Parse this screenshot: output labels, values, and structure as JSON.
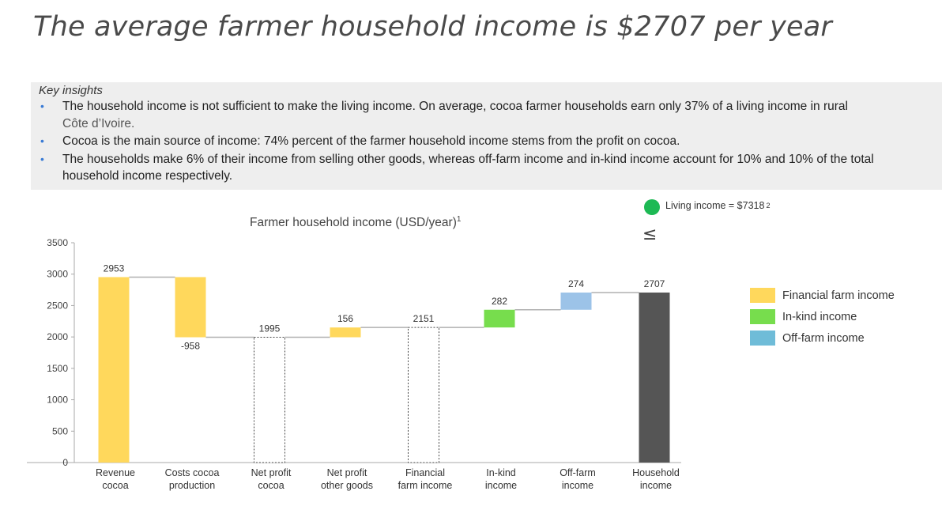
{
  "page": {
    "title": "The average farmer household income is $2707 per year"
  },
  "insights": {
    "heading": "Key insights",
    "bullets": [
      {
        "text": "The household income is not sufficient to make the living income. On average, cocoa farmer households earn only 37% of a living income in rural",
        "text2": "Côte d’Ivoire."
      },
      {
        "text": "Cocoa is the main source of income: 74% percent of the farmer household income stems from the profit on cocoa."
      },
      {
        "text": "The households make 6% of their income from selling other goods, whereas off-farm income and in-kind income account for 10% and 10% of the total household income respectively."
      }
    ]
  },
  "living_income": {
    "label": "Living income = $7318",
    "footnote": "2",
    "symbol": "≤",
    "color": "#1db954"
  },
  "chart_data": {
    "type": "bar",
    "subtype": "waterfall",
    "title": "Farmer household income (USD/year)",
    "title_footnote": "1",
    "ylim": [
      0,
      3500
    ],
    "yticks": [
      0,
      500,
      1000,
      1500,
      2000,
      2500,
      3000,
      3500
    ],
    "grid": false,
    "legend_position": "right",
    "categories": [
      [
        "Revenue",
        "cocoa"
      ],
      [
        "Costs cocoa",
        "production"
      ],
      [
        "Net profit",
        "cocoa"
      ],
      [
        "Net profit",
        "other goods"
      ],
      [
        "Financial",
        "farm income"
      ],
      [
        "In-kind",
        "income"
      ],
      [
        "Off-farm",
        "income"
      ],
      [
        "Household",
        "income"
      ]
    ],
    "bars": [
      {
        "start": 0,
        "end": 2953,
        "label": "2953",
        "kind": "financial",
        "style": "solid",
        "label_pos": "top"
      },
      {
        "start": 2953,
        "end": 1995,
        "label": "-958",
        "kind": "financial",
        "style": "solid",
        "label_pos": "bottom"
      },
      {
        "start": 0,
        "end": 1995,
        "label": "1995",
        "kind": "subtotal",
        "style": "dashed",
        "label_pos": "top"
      },
      {
        "start": 1995,
        "end": 2151,
        "label": "156",
        "kind": "financial",
        "style": "solid",
        "label_pos": "top"
      },
      {
        "start": 0,
        "end": 2151,
        "label": "2151",
        "kind": "subtotal",
        "style": "dashed",
        "label_pos": "top"
      },
      {
        "start": 2151,
        "end": 2433,
        "label": "282",
        "kind": "inkind",
        "style": "solid",
        "label_pos": "top"
      },
      {
        "start": 2433,
        "end": 2707,
        "label": "274",
        "kind": "offfarm",
        "style": "solid",
        "label_pos": "top"
      },
      {
        "start": 0,
        "end": 2707,
        "label": "2707",
        "kind": "total",
        "style": "solid",
        "label_pos": "top"
      }
    ],
    "legend": [
      {
        "name": "Financial farm income",
        "kind": "financial"
      },
      {
        "name": "In-kind income",
        "kind": "inkind"
      },
      {
        "name": "Off-farm income",
        "kind": "offfarm"
      }
    ],
    "colors": {
      "financial": "#ffd85c",
      "inkind": "#77dd4d",
      "offfarm": "#9cc3e8",
      "offfarm_legend": "#6fbcd8",
      "total": "#555555",
      "subtotal": "#ffffff",
      "connector": "#b0b0b0",
      "axis": "#aaaaaa"
    }
  }
}
